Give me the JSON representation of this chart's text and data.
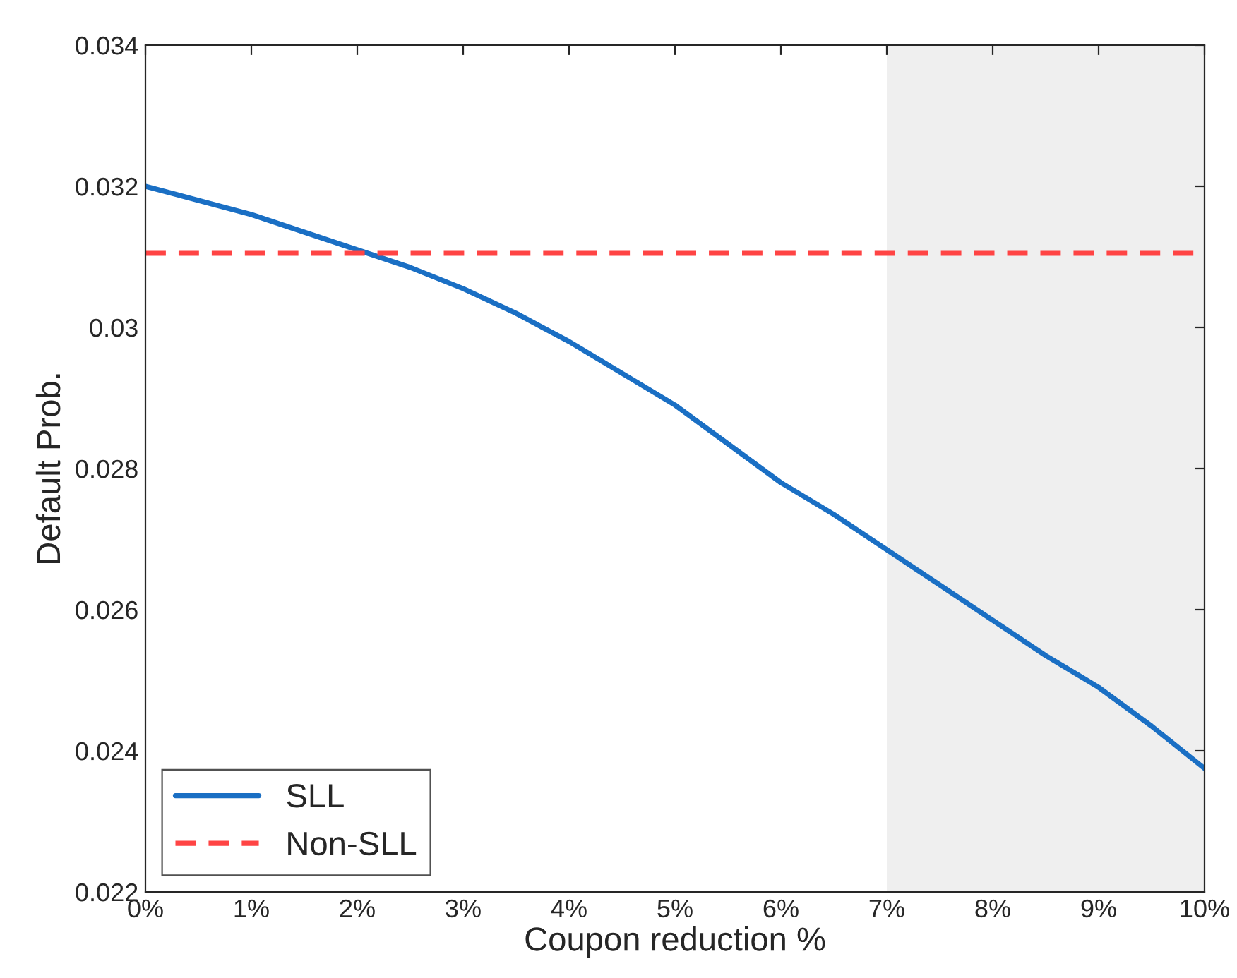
{
  "chart_data": {
    "type": "line",
    "xlabel": "Coupon reduction %",
    "ylabel": "Default Prob.",
    "x": [
      0,
      0.5,
      1,
      1.5,
      2,
      2.5,
      3,
      3.5,
      4,
      4.5,
      5,
      5.5,
      6,
      6.5,
      7,
      7.5,
      8,
      8.5,
      9,
      9.5,
      10
    ],
    "series": [
      {
        "name": "SLL",
        "color": "#1a6fc4",
        "line_style": "solid",
        "values": [
          0.032,
          0.0318,
          0.0316,
          0.03135,
          0.0311,
          0.03085,
          0.03055,
          0.0302,
          0.0298,
          0.02935,
          0.0289,
          0.02835,
          0.0278,
          0.02735,
          0.02685,
          0.02635,
          0.02585,
          0.02535,
          0.0249,
          0.02435,
          0.02375
        ]
      },
      {
        "name": "Non-SLL",
        "color": "#ff4444",
        "line_style": "dashed",
        "values": [
          0.03105,
          0.03105,
          0.03105,
          0.03105,
          0.03105,
          0.03105,
          0.03105,
          0.03105,
          0.03105,
          0.03105,
          0.03105,
          0.03105,
          0.03105,
          0.03105,
          0.03105,
          0.03105,
          0.03105,
          0.03105,
          0.03105,
          0.03105,
          0.03105
        ]
      }
    ],
    "bands": [
      {
        "axis": "x",
        "from": 7,
        "to": 10,
        "color": "#efefef"
      }
    ],
    "xlim": [
      0,
      10
    ],
    "xticks": [
      {
        "value": 0,
        "label": "0%"
      },
      {
        "value": 1,
        "label": "1%"
      },
      {
        "value": 2,
        "label": "2%"
      },
      {
        "value": 3,
        "label": "3%"
      },
      {
        "value": 4,
        "label": "4%"
      },
      {
        "value": 5,
        "label": "5%"
      },
      {
        "value": 6,
        "label": "6%"
      },
      {
        "value": 7,
        "label": "7%"
      },
      {
        "value": 8,
        "label": "8%"
      },
      {
        "value": 9,
        "label": "9%"
      },
      {
        "value": 10,
        "label": "10%"
      }
    ],
    "ylim": [
      0.022,
      0.034
    ],
    "yticks": [
      0.022,
      0.024,
      0.026,
      0.028,
      0.03,
      0.032,
      0.034
    ],
    "grid": false,
    "legend": "bottom left",
    "marker": "none"
  }
}
